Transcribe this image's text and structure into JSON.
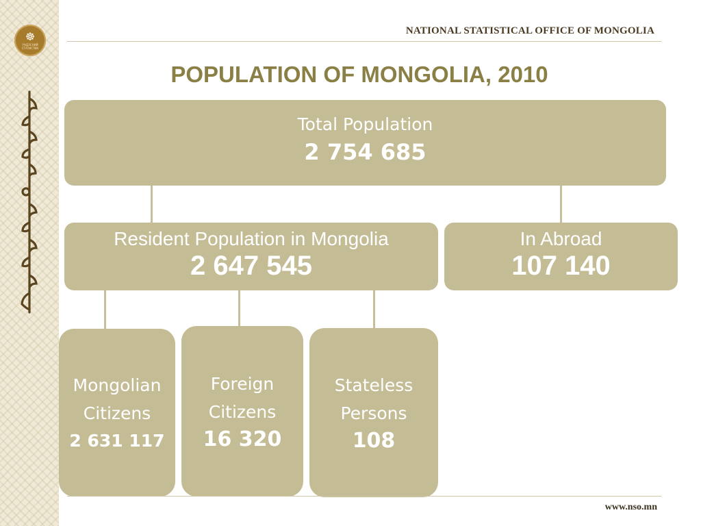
{
  "header": {
    "office_name": "NATIONAL STATISTICAL OFFICE OF MONGOLIA",
    "logo_text": "ҮНДЭСНИЙ СТАТИСТИК"
  },
  "title": "POPULATION OF MONGOLIA, 2010",
  "diagram": {
    "total": {
      "label": "Total Population",
      "value": "2 754 685"
    },
    "resident": {
      "label": "Resident Population in Mongolia",
      "value": "2 647 545"
    },
    "abroad": {
      "label": "In Abroad",
      "value": "107 140"
    },
    "mongolian_citizens": {
      "label_line1": "Mongolian",
      "label_line2": "Citizens",
      "value": "2 631 117"
    },
    "foreign_citizens": {
      "label_line1": "Foreign",
      "label_line2": "Citizens",
      "value": "16 320"
    },
    "stateless_persons": {
      "label_line1": "Stateless",
      "label_line2": "Persons",
      "value": "108"
    }
  },
  "footer": {
    "url": "www.nso.mn"
  },
  "colors": {
    "box_fill": "#c4bc95",
    "title_olive": "#8a8046",
    "connector": "#c7bf9c",
    "sidebar_bg": "#efe9d6",
    "logo_brown": "#a77b2c"
  }
}
